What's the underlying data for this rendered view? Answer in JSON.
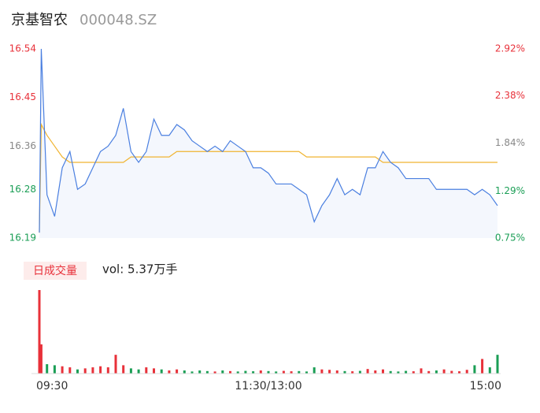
{
  "header": {
    "title": "京基智农",
    "code": "000048.SZ"
  },
  "volume_tab": "日成交量",
  "volume_summary": "vol: 5.37万手",
  "chart_data": [
    {
      "type": "line",
      "x": [
        0,
        1,
        4,
        8,
        12,
        16,
        20,
        24,
        28,
        32,
        36,
        40,
        44,
        48,
        52,
        56,
        60,
        64,
        68,
        72,
        76,
        80,
        84,
        88,
        92,
        96,
        100,
        104,
        108,
        112,
        116,
        120,
        124,
        128,
        132,
        136,
        140,
        144,
        148,
        152,
        156,
        160,
        164,
        168,
        172,
        176,
        180,
        184,
        188,
        192,
        196,
        200,
        204,
        208,
        212,
        216,
        220,
        224,
        228,
        232,
        236,
        240
      ],
      "xlim": [
        0,
        240
      ],
      "ylim": [
        16.19,
        16.54
      ],
      "yticks": [
        16.54,
        16.45,
        16.36,
        16.28,
        16.19
      ],
      "ytick_colors": [
        "#e8313a",
        "#e8313a",
        "#888888",
        "#1a9e55",
        "#1a9e55"
      ],
      "y2lim": [
        0.75,
        2.92
      ],
      "y2ticks": [
        {
          "value": 2.92,
          "label": "2.92%"
        },
        {
          "value": 2.38,
          "label": "2.38%"
        },
        {
          "value": 1.84,
          "label": "1.84%"
        },
        {
          "value": 1.29,
          "label": "1.29%"
        },
        {
          "value": 0.75,
          "label": "0.75%"
        }
      ],
      "area_color": "#f4f7fd",
      "series": [
        {
          "color": "#4a7fe0",
          "values": [
            16.2,
            16.54,
            16.27,
            16.23,
            16.32,
            16.35,
            16.28,
            16.29,
            16.32,
            16.35,
            16.36,
            16.38,
            16.43,
            16.35,
            16.33,
            16.35,
            16.41,
            16.38,
            16.38,
            16.4,
            16.39,
            16.37,
            16.36,
            16.35,
            16.36,
            16.35,
            16.37,
            16.36,
            16.35,
            16.32,
            16.32,
            16.31,
            16.29,
            16.29,
            16.29,
            16.28,
            16.27,
            16.22,
            16.25,
            16.27,
            16.3,
            16.27,
            16.28,
            16.27,
            16.32,
            16.32,
            16.35,
            16.33,
            16.32,
            16.3,
            16.3,
            16.3,
            16.3,
            16.28,
            16.28,
            16.28,
            16.28,
            16.28,
            16.27,
            16.28,
            16.27,
            16.25
          ]
        },
        {
          "color": "#f0b431",
          "values": [
            16.2,
            16.4,
            16.38,
            16.36,
            16.34,
            16.33,
            16.33,
            16.33,
            16.33,
            16.33,
            16.33,
            16.33,
            16.33,
            16.34,
            16.34,
            16.34,
            16.34,
            16.34,
            16.34,
            16.35,
            16.35,
            16.35,
            16.35,
            16.35,
            16.35,
            16.35,
            16.35,
            16.35,
            16.35,
            16.35,
            16.35,
            16.35,
            16.35,
            16.35,
            16.35,
            16.35,
            16.34,
            16.34,
            16.34,
            16.34,
            16.34,
            16.34,
            16.34,
            16.34,
            16.34,
            16.34,
            16.33,
            16.33,
            16.33,
            16.33,
            16.33,
            16.33,
            16.33,
            16.33,
            16.33,
            16.33,
            16.33,
            16.33,
            16.33,
            16.33,
            16.33,
            16.33
          ]
        }
      ]
    },
    {
      "type": "bar",
      "xlim": [
        0,
        240
      ],
      "xticks": [
        {
          "value": 0,
          "label": "09:30"
        },
        {
          "value": 120,
          "label": "11:30/13:00"
        },
        {
          "value": 240,
          "label": "15:00"
        }
      ],
      "ylim": [
        0,
        4000
      ],
      "up_color": "#e8313a",
      "down_color": "#1a9e55",
      "values": [
        4000,
        1400,
        450,
        400,
        350,
        300,
        200,
        250,
        300,
        350,
        300,
        900,
        400,
        250,
        200,
        300,
        250,
        200,
        150,
        200,
        150,
        100,
        150,
        120,
        100,
        150,
        120,
        100,
        130,
        110,
        150,
        120,
        100,
        130,
        110,
        120,
        100,
        300,
        200,
        180,
        150,
        120,
        110,
        130,
        220,
        150,
        200,
        120,
        100,
        130,
        110,
        250,
        120,
        150,
        200,
        130,
        110,
        180,
        400,
        700,
        300,
        900
      ]
    }
  ]
}
